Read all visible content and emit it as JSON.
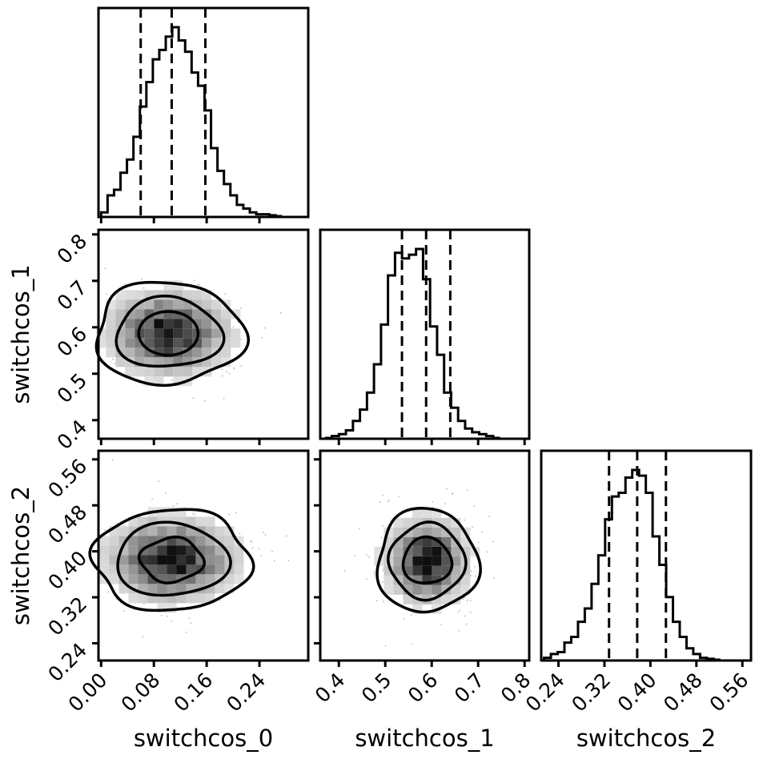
{
  "chart_data": {
    "type": "corner",
    "parameters": [
      "switchcos_0",
      "switchcos_1",
      "switchcos_2"
    ],
    "axis_labels": {
      "x": [
        "switchcos_0",
        "switchcos_1",
        "switchcos_2"
      ],
      "y": [
        "switchcos_1",
        "switchcos_2"
      ]
    },
    "ranges": [
      [
        -0.004,
        0.314
      ],
      [
        0.36,
        0.81
      ],
      [
        0.21,
        0.575
      ]
    ],
    "ticks": [
      {
        "values": [
          0.0,
          0.08,
          0.16,
          0.24
        ],
        "labels": [
          "0.00",
          "0.08",
          "0.16",
          "0.24"
        ]
      },
      {
        "values": [
          0.4,
          0.5,
          0.6,
          0.7,
          0.8
        ],
        "labels": [
          "0.4",
          "0.5",
          "0.6",
          "0.7",
          "0.8"
        ]
      },
      {
        "values": [
          0.24,
          0.32,
          0.4,
          0.48,
          0.56
        ],
        "labels": [
          "0.24",
          "0.32",
          "0.40",
          "0.48",
          "0.56"
        ]
      }
    ],
    "quantiles": [
      [
        0.06,
        0.107,
        0.158
      ],
      [
        0.536,
        0.588,
        0.64
      ],
      [
        0.328,
        0.377,
        0.427
      ]
    ],
    "histograms": [
      {
        "bin_start": 0.0,
        "bin_width": 0.0098,
        "values": [
          0.02,
          0.11,
          0.14,
          0.23,
          0.3,
          0.42,
          0.58,
          0.71,
          0.83,
          0.88,
          0.95,
          1.0,
          0.93,
          0.87,
          0.76,
          0.69,
          0.56,
          0.36,
          0.24,
          0.17,
          0.11,
          0.06,
          0.04,
          0.02,
          0.01,
          0.01,
          0.005,
          0.0
        ]
      },
      {
        "bin_start": 0.37,
        "bin_width": 0.0151,
        "values": [
          0.0,
          0.01,
          0.02,
          0.04,
          0.09,
          0.15,
          0.24,
          0.39,
          0.6,
          0.86,
          0.98,
          0.95,
          0.97,
          1.0,
          0.84,
          0.59,
          0.44,
          0.24,
          0.16,
          0.09,
          0.05,
          0.03,
          0.02,
          0.01,
          0.0
        ]
      },
      {
        "bin_start": 0.215,
        "bin_width": 0.0118,
        "values": [
          0.01,
          0.03,
          0.04,
          0.09,
          0.12,
          0.2,
          0.27,
          0.4,
          0.55,
          0.74,
          0.86,
          0.88,
          0.96,
          1.0,
          0.97,
          0.88,
          0.65,
          0.5,
          0.33,
          0.2,
          0.12,
          0.06,
          0.03,
          0.01,
          0.005,
          0.0
        ]
      }
    ],
    "joint_2d": [
      {
        "x_param": 0,
        "y_param": 1,
        "center": [
          0.102,
          0.587
        ],
        "contours": [
          {
            "level": "inner",
            "rx": 0.045,
            "ry": 0.047,
            "bumps": [
              [
                0,
                0.0,
                0.0
              ]
            ]
          },
          {
            "level": "mid",
            "rx": 0.08,
            "ry": 0.075,
            "bumps": [
              [
                3,
                0.08,
                0.5
              ]
            ]
          },
          {
            "level": "outer",
            "rx": 0.112,
            "ry": 0.11,
            "bumps": [
              [
                3,
                0.06,
                1.2
              ],
              [
                5,
                0.04,
                0.3
              ]
            ]
          }
        ]
      },
      {
        "x_param": 0,
        "y_param": 2,
        "center": [
          0.107,
          0.385
        ],
        "contours": [
          {
            "level": "inner",
            "rx": 0.047,
            "ry": 0.038,
            "bumps": [
              [
                4,
                0.07,
                0.6
              ]
            ]
          },
          {
            "level": "mid",
            "rx": 0.085,
            "ry": 0.063,
            "bumps": [
              [
                3,
                0.06,
                0.9
              ]
            ]
          },
          {
            "level": "outer",
            "rx": 0.118,
            "ry": 0.088,
            "bumps": [
              [
                4,
                0.05,
                0.2
              ],
              [
                6,
                0.03,
                1.0
              ]
            ]
          }
        ]
      },
      {
        "x_param": 1,
        "y_param": 2,
        "center": [
          0.59,
          0.383
        ],
        "contours": [
          {
            "level": "inner",
            "rx": 0.052,
            "ry": 0.04,
            "bumps": [
              [
                3,
                0.06,
                0.4
              ]
            ]
          },
          {
            "level": "mid",
            "rx": 0.08,
            "ry": 0.065,
            "bumps": [
              [
                4,
                0.05,
                1.1
              ]
            ]
          },
          {
            "level": "outer",
            "rx": 0.108,
            "ry": 0.09,
            "bumps": [
              [
                3,
                0.06,
                0.7
              ],
              [
                5,
                0.03,
                0.2
              ]
            ]
          }
        ]
      }
    ],
    "colors": {
      "line": "#000000",
      "scatter": "#b8b8b8",
      "background": "#ffffff"
    }
  }
}
